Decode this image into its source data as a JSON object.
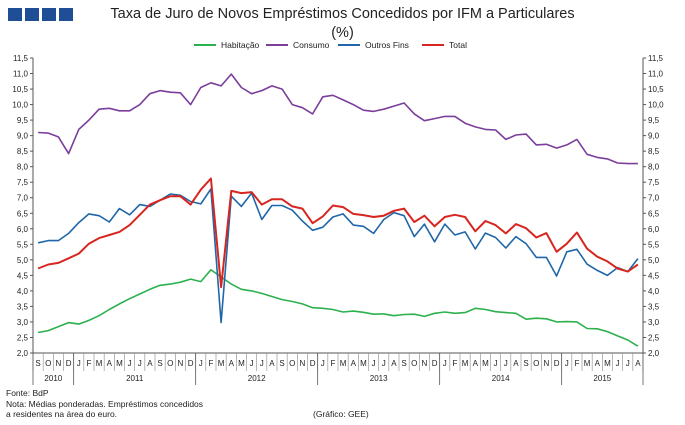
{
  "header": {
    "title": "Taxa de Juro de Novos Empréstimos Concedidos por IFM a Particulares",
    "subtitle": "(%)"
  },
  "footer": {
    "source": "Fonte: BdP",
    "note_line1": "Nota: Médias ponderadas.  Empréstimos concedidos",
    "note_line2": "a residentes na área do euro.",
    "credit": "(Gráfico: GEE)"
  },
  "chart_data": {
    "type": "line",
    "title": "Taxa de Juro de Novos Empréstimos Concedidos por IFM a Particulares",
    "subtitle": "(%)",
    "ylim": [
      2.0,
      11.5
    ],
    "yticks": [
      "2,0",
      "2,5",
      "3,0",
      "3,5",
      "4,0",
      "4,5",
      "5,0",
      "5,5",
      "6,0",
      "6,5",
      "7,0",
      "7,5",
      "8,0",
      "8,5",
      "9,0",
      "9,5",
      "10,0",
      "10,5",
      "11,0",
      "11,5"
    ],
    "y_axis_both_sides": true,
    "grid": false,
    "legend_position": "top",
    "x_months": [
      "S",
      "O",
      "N",
      "D",
      "J",
      "F",
      "M",
      "A",
      "M",
      "J",
      "J",
      "A",
      "S",
      "O",
      "N",
      "D",
      "J",
      "F",
      "M",
      "A",
      "M",
      "J",
      "J",
      "A",
      "S",
      "O",
      "N",
      "D",
      "J",
      "F",
      "M",
      "A",
      "M",
      "J",
      "J",
      "A",
      "S",
      "O",
      "N",
      "D",
      "J",
      "F",
      "M",
      "A",
      "M",
      "J",
      "J",
      "A",
      "S",
      "O",
      "N",
      "D",
      "J",
      "F",
      "M",
      "A",
      "M",
      "J",
      "J",
      "A"
    ],
    "x_years": [
      {
        "label": "2010",
        "start": 0,
        "end": 3
      },
      {
        "label": "2011",
        "start": 4,
        "end": 15
      },
      {
        "label": "2012",
        "start": 16,
        "end": 27
      },
      {
        "label": "2013",
        "start": 28,
        "end": 39
      },
      {
        "label": "2014",
        "start": 40,
        "end": 51
      },
      {
        "label": "2015",
        "start": 52,
        "end": 59
      }
    ],
    "series": [
      {
        "name": "Habitação",
        "color": "#2db04e",
        "values": [
          2.66,
          2.72,
          2.85,
          2.98,
          2.93,
          3.05,
          3.2,
          3.4,
          3.58,
          3.75,
          3.9,
          4.05,
          4.18,
          4.22,
          4.28,
          4.38,
          4.3,
          4.68,
          4.45,
          4.22,
          4.05,
          4.0,
          3.92,
          3.82,
          3.72,
          3.66,
          3.58,
          3.46,
          3.44,
          3.4,
          3.32,
          3.35,
          3.31,
          3.25,
          3.26,
          3.2,
          3.24,
          3.25,
          3.18,
          3.28,
          3.32,
          3.28,
          3.3,
          3.44,
          3.4,
          3.33,
          3.3,
          3.28,
          3.09,
          3.12,
          3.1,
          3.0,
          3.01,
          3.0,
          2.79,
          2.78,
          2.69,
          2.55,
          2.42,
          2.22
        ]
      },
      {
        "name": "Consumo",
        "color": "#7b3e9b",
        "values": [
          9.1,
          9.08,
          8.96,
          8.42,
          9.2,
          9.5,
          9.85,
          9.88,
          9.8,
          9.8,
          10.0,
          10.35,
          10.45,
          10.4,
          10.38,
          10.0,
          10.55,
          10.7,
          10.6,
          10.98,
          10.55,
          10.35,
          10.45,
          10.6,
          10.5,
          10.0,
          9.9,
          9.7,
          10.25,
          10.3,
          10.15,
          10.0,
          9.82,
          9.78,
          9.85,
          9.95,
          10.05,
          9.7,
          9.48,
          9.55,
          9.62,
          9.62,
          9.4,
          9.28,
          9.2,
          9.18,
          8.88,
          9.02,
          9.05,
          8.7,
          8.72,
          8.6,
          8.7,
          8.88,
          8.4,
          8.3,
          8.25,
          8.12,
          8.1,
          8.1
        ]
      },
      {
        "name": "Outros Fins",
        "color": "#1f67a8",
        "values": [
          5.55,
          5.62,
          5.62,
          5.85,
          6.2,
          6.48,
          6.42,
          6.22,
          6.65,
          6.45,
          6.78,
          6.72,
          6.92,
          7.12,
          7.08,
          6.88,
          6.8,
          7.28,
          2.98,
          7.05,
          6.72,
          7.15,
          6.3,
          6.75,
          6.75,
          6.6,
          6.25,
          5.95,
          6.05,
          6.38,
          6.48,
          6.12,
          6.08,
          5.85,
          6.3,
          6.52,
          6.42,
          5.75,
          6.15,
          5.58,
          6.15,
          5.8,
          5.9,
          5.35,
          5.86,
          5.72,
          5.38,
          5.75,
          5.52,
          5.08,
          5.08,
          4.48,
          5.26,
          5.34,
          4.86,
          4.66,
          4.5,
          4.75,
          4.62,
          5.04
        ]
      },
      {
        "name": "Total",
        "color": "#d7261f",
        "values": [
          4.72,
          4.85,
          4.9,
          5.05,
          5.2,
          5.52,
          5.7,
          5.8,
          5.9,
          6.12,
          6.45,
          6.78,
          6.92,
          7.05,
          7.05,
          6.78,
          7.26,
          7.62,
          4.12,
          7.22,
          7.15,
          7.18,
          6.78,
          6.95,
          6.95,
          6.72,
          6.65,
          6.18,
          6.4,
          6.75,
          6.7,
          6.48,
          6.44,
          6.38,
          6.42,
          6.58,
          6.65,
          6.22,
          6.42,
          6.08,
          6.38,
          6.45,
          6.38,
          5.92,
          6.25,
          6.12,
          5.85,
          6.15,
          6.02,
          5.72,
          5.86,
          5.26,
          5.52,
          5.88,
          5.36,
          5.1,
          4.95,
          4.72,
          4.62,
          4.85
        ]
      }
    ]
  }
}
